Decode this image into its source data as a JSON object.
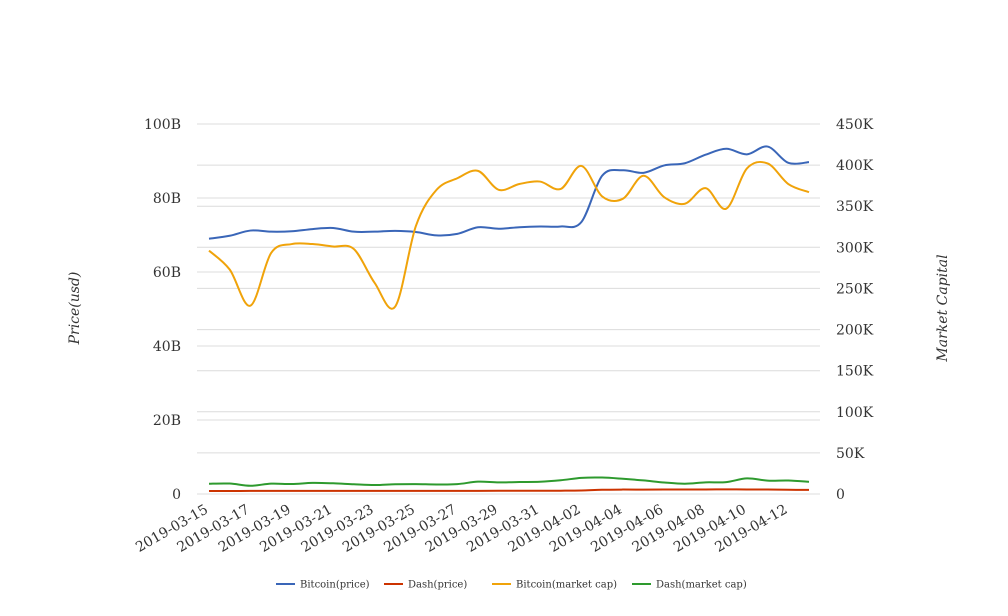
{
  "chart_data": {
    "type": "line",
    "title": "",
    "xlabel": "",
    "ylabel_left": "Price(usd)",
    "ylabel_right": "Market Capital",
    "grid": true,
    "legend_position": "bottom",
    "x": [
      "2019-03-15",
      "2019-03-16",
      "2019-03-17",
      "2019-03-18",
      "2019-03-19",
      "2019-03-20",
      "2019-03-21",
      "2019-03-22",
      "2019-03-23",
      "2019-03-24",
      "2019-03-25",
      "2019-03-26",
      "2019-03-27",
      "2019-03-28",
      "2019-03-29",
      "2019-03-30",
      "2019-03-31",
      "2019-04-01",
      "2019-04-02",
      "2019-04-03",
      "2019-04-04",
      "2019-04-05",
      "2019-04-06",
      "2019-04-07",
      "2019-04-08",
      "2019-04-09",
      "2019-04-10",
      "2019-04-11",
      "2019-04-12",
      "2019-04-13"
    ],
    "x_tick_labels": [
      "2019-03-15",
      "2019-03-17",
      "2019-03-19",
      "2019-03-21",
      "2019-03-23",
      "2019-03-25",
      "2019-03-27",
      "2019-03-29",
      "2019-03-31",
      "2019-04-02",
      "2019-04-04",
      "2019-04-06",
      "2019-04-08",
      "2019-04-10",
      "2019-04-12"
    ],
    "y_left": {
      "min": 0,
      "max": 100000000000,
      "ticks": [
        0,
        20000000000,
        40000000000,
        60000000000,
        80000000000,
        100000000000
      ],
      "tick_labels": [
        "0",
        "20B",
        "40B",
        "60B",
        "80B",
        "100B"
      ]
    },
    "y_right": {
      "min": 0,
      "max": 450000,
      "ticks": [
        0,
        50000,
        100000,
        150000,
        200000,
        250000,
        300000,
        350000,
        400000,
        450000
      ],
      "tick_labels": [
        "0",
        "50K",
        "100K",
        "150K",
        "200K",
        "250K",
        "300K",
        "350K",
        "400K",
        "450K"
      ]
    },
    "series": [
      {
        "name": "Bitcoin(price)",
        "axis": "left",
        "color": "#3a66b8",
        "values": [
          69000000000,
          69800000000,
          71200000000,
          70900000000,
          71000000000,
          71600000000,
          71900000000,
          70900000000,
          70900000000,
          71100000000,
          70800000000,
          69900000000,
          70300000000,
          72100000000,
          71700000000,
          72100000000,
          72300000000,
          72300000000,
          73500000000,
          86000000000,
          87500000000,
          86800000000,
          88800000000,
          89400000000,
          91700000000,
          93300000000,
          91800000000,
          93900000000,
          89500000000,
          89700000000
        ]
      },
      {
        "name": "Dash(price)",
        "axis": "left",
        "color": "#cc3300",
        "values": [
          800000000,
          820000000,
          830000000,
          840000000,
          840000000,
          850000000,
          850000000,
          840000000,
          830000000,
          840000000,
          840000000,
          830000000,
          840000000,
          860000000,
          870000000,
          870000000,
          880000000,
          890000000,
          950000000,
          1150000000,
          1200000000,
          1180000000,
          1200000000,
          1210000000,
          1230000000,
          1250000000,
          1220000000,
          1230000000,
          1150000000,
          1100000000
        ]
      },
      {
        "name": "Bitcoin(market cap)",
        "axis": "right",
        "color": "#f0a30a",
        "values": [
          296000,
          273000,
          229000,
          293000,
          304000,
          304000,
          301000,
          298000,
          257000,
          228000,
          326000,
          370000,
          384000,
          393000,
          370000,
          377000,
          380000,
          371000,
          399000,
          362000,
          359000,
          387000,
          361000,
          353000,
          372000,
          347000,
          396000,
          402000,
          377000,
          367000
        ]
      },
      {
        "name": "Dash(market cap)",
        "axis": "right",
        "color": "#2e9a2e",
        "values": [
          12500,
          12700,
          10000,
          12600,
          12100,
          13500,
          13000,
          11800,
          10900,
          11800,
          12000,
          11600,
          12000,
          15000,
          14100,
          14600,
          14900,
          16700,
          19600,
          20000,
          18500,
          16500,
          14000,
          12500,
          14200,
          14500,
          19000,
          16300,
          16400,
          14800
        ]
      }
    ]
  }
}
